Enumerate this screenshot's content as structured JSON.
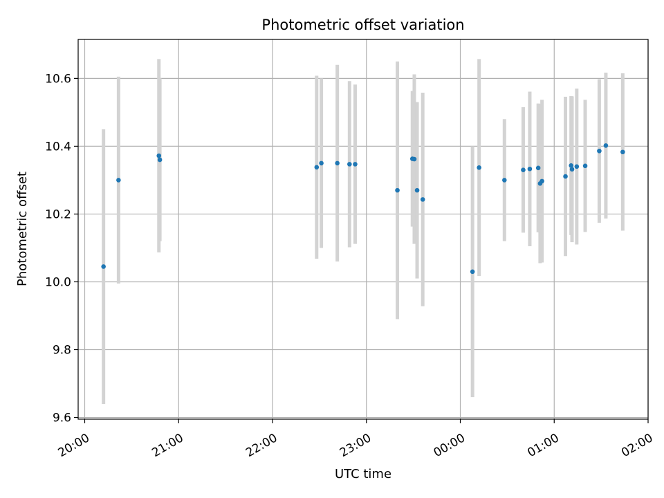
{
  "chart_data": {
    "type": "scatter",
    "title": "Photometric offset variation",
    "xlabel": "UTC time",
    "ylabel": "Photometric offset",
    "grid": true,
    "legend": "none",
    "x_axis_kind": "time",
    "x_range": [
      "20:00",
      "02:00"
    ],
    "xlim_hours": [
      19.93,
      26.0
    ],
    "x_ticks": [
      {
        "label": "20:00",
        "hour": 20
      },
      {
        "label": "21:00",
        "hour": 21
      },
      {
        "label": "22:00",
        "hour": 22
      },
      {
        "label": "23:00",
        "hour": 23
      },
      {
        "label": "00:00",
        "hour": 24
      },
      {
        "label": "01:00",
        "hour": 25
      },
      {
        "label": "02:00",
        "hour": 26
      }
    ],
    "ylim": [
      9.595,
      10.715
    ],
    "y_ticks": [
      {
        "label": "9.6",
        "value": 9.6
      },
      {
        "label": "9.8",
        "value": 9.8
      },
      {
        "label": "10.0",
        "value": 10.0
      },
      {
        "label": "10.2",
        "value": 10.2
      },
      {
        "label": "10.4",
        "value": 10.4
      },
      {
        "label": "10.6",
        "value": 10.6
      }
    ],
    "point_color": "#1f77b4",
    "errorbar_color": "#d3d3d3",
    "points": [
      {
        "time": "20:12",
        "hour": 20.2,
        "y": 10.045,
        "err": 0.405
      },
      {
        "time": "20:21",
        "hour": 20.36,
        "y": 10.3,
        "err": 0.305
      },
      {
        "time": "20:47",
        "hour": 20.79,
        "y": 10.372,
        "err": 0.285
      },
      {
        "time": "20:48",
        "hour": 20.8,
        "y": 10.36,
        "err": 0.24
      },
      {
        "time": "22:28",
        "hour": 22.47,
        "y": 10.338,
        "err": 0.27
      },
      {
        "time": "22:31",
        "hour": 22.52,
        "y": 10.35,
        "err": 0.25
      },
      {
        "time": "22:41",
        "hour": 22.69,
        "y": 10.35,
        "err": 0.29
      },
      {
        "time": "22:49",
        "hour": 22.82,
        "y": 10.347,
        "err": 0.245
      },
      {
        "time": "22:53",
        "hour": 22.88,
        "y": 10.347,
        "err": 0.235
      },
      {
        "time": "23:20",
        "hour": 23.33,
        "y": 10.27,
        "err": 0.38
      },
      {
        "time": "23:29",
        "hour": 23.49,
        "y": 10.363,
        "err": 0.2
      },
      {
        "time": "23:31",
        "hour": 23.51,
        "y": 10.362,
        "err": 0.25
      },
      {
        "time": "23:32",
        "hour": 23.54,
        "y": 10.27,
        "err": 0.26
      },
      {
        "time": "23:36",
        "hour": 23.6,
        "y": 10.243,
        "err": 0.315
      },
      {
        "time": "00:08",
        "hour": 24.13,
        "y": 10.03,
        "err": 0.37
      },
      {
        "time": "00:12",
        "hour": 24.2,
        "y": 10.337,
        "err": 0.32
      },
      {
        "time": "00:28",
        "hour": 24.47,
        "y": 10.3,
        "err": 0.18
      },
      {
        "time": "00:40",
        "hour": 24.67,
        "y": 10.33,
        "err": 0.185
      },
      {
        "time": "00:45",
        "hour": 24.74,
        "y": 10.333,
        "err": 0.228
      },
      {
        "time": "00:50",
        "hour": 24.83,
        "y": 10.336,
        "err": 0.19
      },
      {
        "time": "00:51",
        "hour": 24.85,
        "y": 10.29,
        "err": 0.235
      },
      {
        "time": "00:52",
        "hour": 24.87,
        "y": 10.297,
        "err": 0.24
      },
      {
        "time": "01:07",
        "hour": 25.12,
        "y": 10.311,
        "err": 0.235
      },
      {
        "time": "01:11",
        "hour": 25.18,
        "y": 10.343,
        "err": 0.205
      },
      {
        "time": "01:11",
        "hour": 25.19,
        "y": 10.332,
        "err": 0.215
      },
      {
        "time": "01:14",
        "hour": 25.24,
        "y": 10.34,
        "err": 0.23
      },
      {
        "time": "01:20",
        "hour": 25.33,
        "y": 10.342,
        "err": 0.195
      },
      {
        "time": "01:29",
        "hour": 25.48,
        "y": 10.386,
        "err": 0.212
      },
      {
        "time": "01:33",
        "hour": 25.55,
        "y": 10.402,
        "err": 0.215
      },
      {
        "time": "01:44",
        "hour": 25.73,
        "y": 10.383,
        "err": 0.232
      }
    ]
  }
}
